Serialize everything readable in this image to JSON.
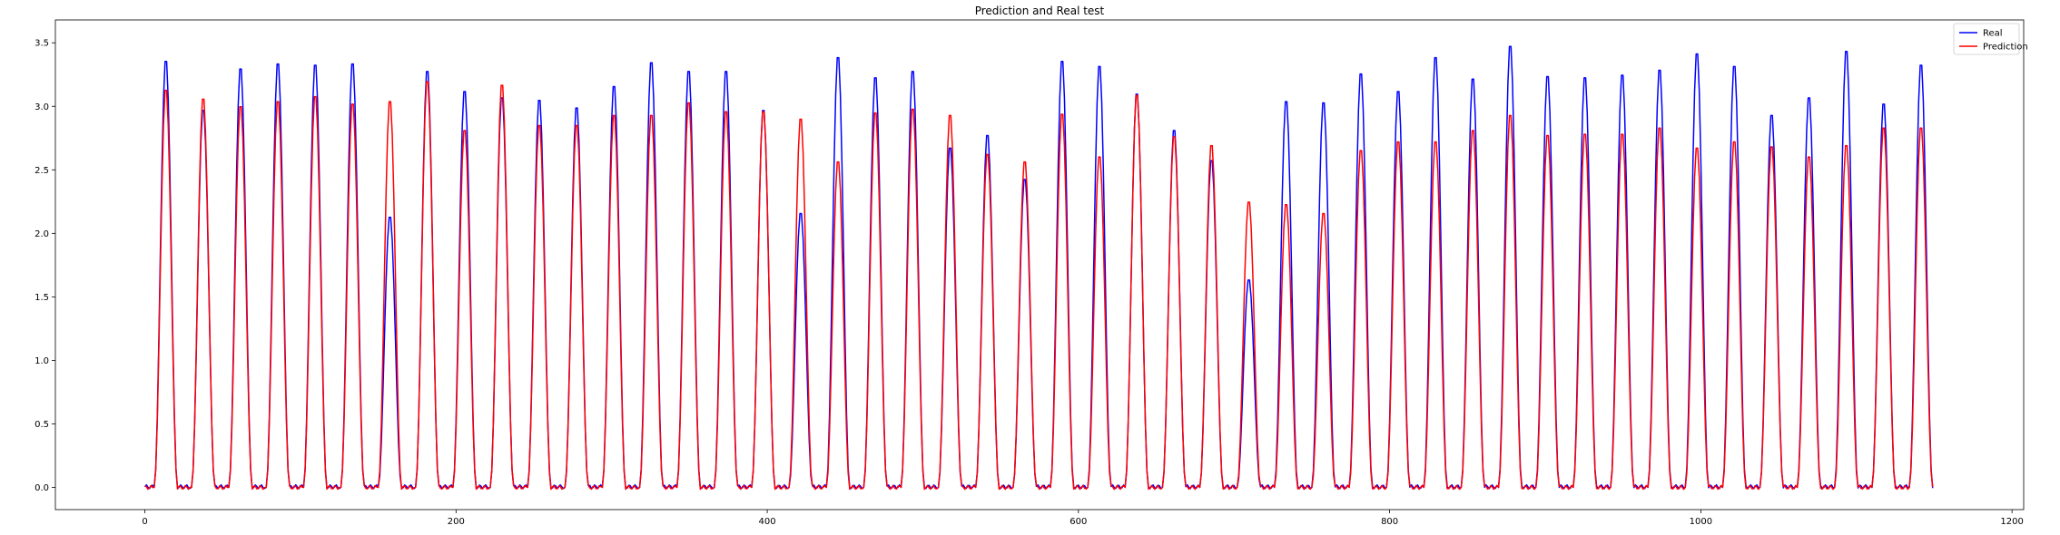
{
  "chart_data": {
    "type": "line",
    "title": "Prediction and Real test",
    "xlabel": "",
    "ylabel": "",
    "xlim": [
      -57.5,
      1207.5
    ],
    "ylim": [
      -0.175,
      3.68
    ],
    "xticks": [
      0,
      200,
      400,
      600,
      800,
      1000,
      1200
    ],
    "xtick_labels": [
      "0",
      "200",
      "400",
      "600",
      "800",
      "1000",
      "1200"
    ],
    "yticks": [
      0.0,
      0.5,
      1.0,
      1.5,
      2.0,
      2.5,
      3.0,
      3.5
    ],
    "ytick_labels": [
      "0.0",
      "0.5",
      "1.0",
      "1.5",
      "2.0",
      "2.5",
      "3.0",
      "3.5"
    ],
    "grid": false,
    "legend_position": "top-right",
    "n_points": 1150,
    "period": 24,
    "series": [
      {
        "name": "Real",
        "color": "#0000ff",
        "peaks": [
          3.39,
          3.0,
          3.33,
          3.37,
          3.36,
          3.37,
          2.15,
          3.31,
          3.15,
          3.1,
          3.08,
          3.02,
          3.19,
          3.38,
          3.31,
          3.31,
          3.0,
          2.18,
          3.42,
          3.26,
          3.31,
          2.7,
          2.8,
          2.45,
          3.39,
          3.35,
          3.13,
          2.84,
          2.6,
          1.65,
          3.07,
          3.06,
          3.29,
          3.15,
          3.42,
          3.25,
          3.51,
          3.27,
          3.26,
          3.28,
          3.32,
          3.45,
          3.35,
          2.96,
          3.1,
          3.47,
          3.05,
          3.36
        ],
        "notes": "daily cycle with real measurements, minima near 0.0"
      },
      {
        "name": "Prediction",
        "color": "#ff0000",
        "peaks": [
          3.16,
          3.09,
          3.03,
          3.07,
          3.11,
          3.05,
          3.07,
          3.23,
          2.84,
          3.2,
          2.88,
          2.88,
          2.96,
          2.96,
          3.06,
          2.99,
          2.99,
          2.93,
          2.59,
          2.98,
          3.01,
          2.96,
          2.65,
          2.59,
          2.97,
          2.63,
          3.12,
          2.79,
          2.72,
          2.27,
          2.25,
          2.18,
          2.68,
          2.75,
          2.75,
          2.84,
          2.96,
          2.8,
          2.81,
          2.81,
          2.86,
          2.7,
          2.75,
          2.71,
          2.63,
          2.72,
          2.86,
          2.86
        ],
        "notes": "smoothed daily cycle, minima near 0.0"
      }
    ]
  }
}
